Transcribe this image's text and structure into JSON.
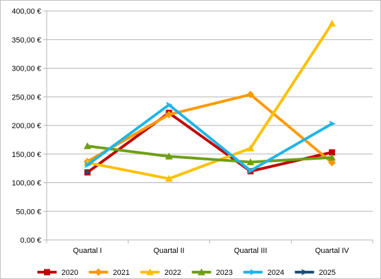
{
  "chart_data": {
    "type": "line",
    "title": "",
    "xlabel": "",
    "ylabel": "",
    "categories": [
      "Quartal I",
      "Quartal II",
      "Quartal III",
      "Quartal IV"
    ],
    "y_ticks": [
      "0,00 €",
      "50,00 €",
      "100,00 €",
      "150,00 €",
      "200,00 €",
      "250,00 €",
      "300,00 €",
      "350,00 €",
      "400,00 €"
    ],
    "ylim": [
      0,
      400
    ],
    "y_step": 50,
    "grid": "horizontal",
    "legend_position": "bottom",
    "series": [
      {
        "name": "2020",
        "color": "#c00000",
        "marker": "square",
        "values": [
          118,
          222,
          120,
          153
        ]
      },
      {
        "name": "2021",
        "color": "#ff9900",
        "marker": "diamond",
        "values": [
          137,
          219,
          254,
          135
        ]
      },
      {
        "name": "2022",
        "color": "#ffc000",
        "marker": "triangle",
        "values": [
          135,
          107,
          160,
          378
        ]
      },
      {
        "name": "2023",
        "color": "#6e9f13",
        "marker": "triangle",
        "values": [
          164,
          146,
          136,
          144
        ]
      },
      {
        "name": "2024",
        "color": "#1fb5e8",
        "marker": "arrow",
        "values": [
          131,
          236,
          121,
          203
        ]
      },
      {
        "name": "2025",
        "color": "#1f4e79",
        "marker": "arrow",
        "values": [
          118,
          null,
          null,
          null
        ]
      }
    ]
  }
}
